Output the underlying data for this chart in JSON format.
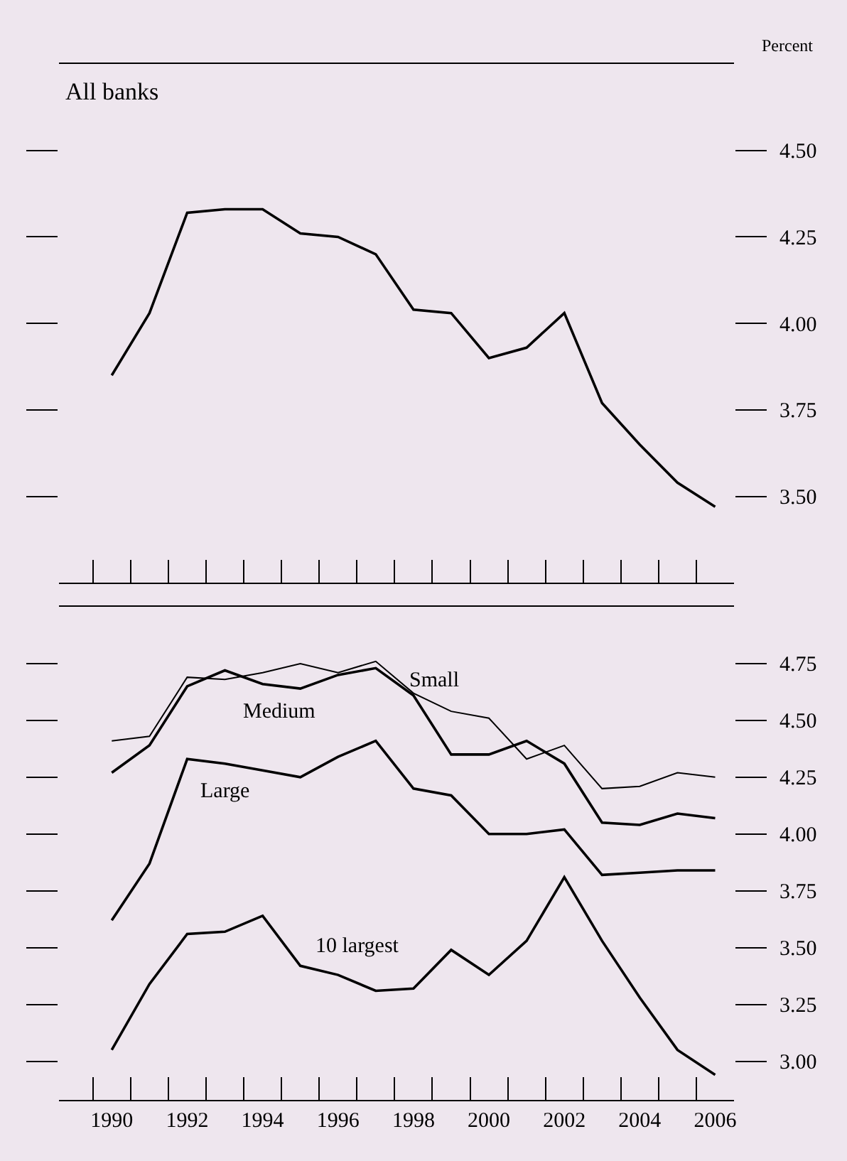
{
  "chart_data": [
    {
      "type": "line",
      "title": "All banks",
      "ylabel": "Percent",
      "x": [
        1990,
        1991,
        1992,
        1993,
        1994,
        1995,
        1996,
        1997,
        1998,
        1999,
        2000,
        2001,
        2002,
        2003,
        2004,
        2005,
        2006
      ],
      "series": [
        {
          "color": "#000000",
          "values": [
            3.85,
            4.03,
            4.32,
            4.33,
            4.33,
            4.26,
            4.25,
            4.2,
            4.04,
            4.03,
            3.9,
            3.93,
            4.03,
            3.77,
            3.65,
            3.54,
            3.47
          ]
        }
      ],
      "xlim": [
        1988.6,
        2006.5
      ],
      "xticks": [
        {
          "value": 1989.5,
          "label": null
        },
        {
          "value": 1990.5,
          "label": null
        },
        {
          "value": 1991.5,
          "label": null
        },
        {
          "value": 1992.5,
          "label": null
        },
        {
          "value": 1993.5,
          "label": null
        },
        {
          "value": 1994.5,
          "label": null
        },
        {
          "value": 1995.5,
          "label": null
        },
        {
          "value": 1996.5,
          "label": null
        },
        {
          "value": 1997.5,
          "label": null
        },
        {
          "value": 1998.5,
          "label": null
        },
        {
          "value": 1999.5,
          "label": null
        },
        {
          "value": 2000.5,
          "label": null
        },
        {
          "value": 2001.5,
          "label": null
        },
        {
          "value": 2002.5,
          "label": null
        },
        {
          "value": 2003.5,
          "label": null
        },
        {
          "value": 2004.5,
          "label": null
        },
        {
          "value": 2005.5,
          "label": null
        }
      ],
      "ylim": [
        3.25,
        4.75
      ],
      "yticks": [
        {
          "value": 3.5,
          "label": "3.50"
        },
        {
          "value": 3.75,
          "label": "3.75"
        },
        {
          "value": 4.0,
          "label": "4.00"
        },
        {
          "value": 4.25,
          "label": "4.25"
        },
        {
          "value": 4.5,
          "label": "4.50"
        }
      ],
      "tick_labels": "y",
      "grid": false,
      "marker": "none",
      "line_style": "solid"
    },
    {
      "type": "line",
      "x": [
        1990,
        1991,
        1992,
        1993,
        1994,
        1995,
        1996,
        1997,
        1998,
        1999,
        2000,
        2001,
        2002,
        2003,
        2004,
        2005,
        2006
      ],
      "series": [
        {
          "name": "Small",
          "color": "#000000",
          "values": [
            4.41,
            4.43,
            4.69,
            4.68,
            4.71,
            4.75,
            4.71,
            4.76,
            4.62,
            4.54,
            4.51,
            4.33,
            4.39,
            4.2,
            4.21,
            4.27,
            4.25
          ]
        },
        {
          "name": "Medium",
          "color": "#000000",
          "values": [
            4.27,
            4.39,
            4.65,
            4.72,
            4.66,
            4.64,
            4.7,
            4.73,
            4.61,
            4.35,
            4.35,
            4.41,
            4.31,
            4.05,
            4.04,
            4.09,
            4.07
          ]
        },
        {
          "name": "Large",
          "color": "#000000",
          "values": [
            3.62,
            3.87,
            4.33,
            4.31,
            4.28,
            4.25,
            4.34,
            4.41,
            4.2,
            4.17,
            4.0,
            4.0,
            4.02,
            3.82,
            3.83,
            3.84,
            3.84
          ]
        },
        {
          "name": "10 largest",
          "color": "#000000",
          "values": [
            3.05,
            3.34,
            3.56,
            3.57,
            3.64,
            3.42,
            3.38,
            3.31,
            3.32,
            3.49,
            3.38,
            3.53,
            3.81,
            3.53,
            3.28,
            3.05,
            2.94
          ]
        }
      ],
      "xlim": [
        1988.6,
        2006.5
      ],
      "xticks": [
        1990,
        1992,
        1994,
        1996,
        1998,
        2000,
        2002,
        2004,
        2006,
        {
          "value": 1989.5,
          "label": null
        },
        {
          "value": 1990.5,
          "label": null
        },
        {
          "value": 1991.5,
          "label": null
        },
        {
          "value": 1992.5,
          "label": null
        },
        {
          "value": 1993.5,
          "label": null
        },
        {
          "value": 1994.5,
          "label": null
        },
        {
          "value": 1995.5,
          "label": null
        },
        {
          "value": 1996.5,
          "label": null
        },
        {
          "value": 1997.5,
          "label": null
        },
        {
          "value": 1998.5,
          "label": null
        },
        {
          "value": 1999.5,
          "label": null
        },
        {
          "value": 2000.5,
          "label": null
        },
        {
          "value": 2001.5,
          "label": null
        },
        {
          "value": 2002.5,
          "label": null
        },
        {
          "value": 2003.5,
          "label": null
        },
        {
          "value": 2004.5,
          "label": null
        },
        {
          "value": 2005.5,
          "label": null
        }
      ],
      "ylim": [
        2.83,
        5.0
      ],
      "yticks": [
        {
          "value": 3.0,
          "label": "3.00"
        },
        {
          "value": 3.25,
          "label": "3.25"
        },
        {
          "value": 3.5,
          "label": "3.50"
        },
        {
          "value": 3.75,
          "label": "3.75"
        },
        {
          "value": 4.0,
          "label": "4.00"
        },
        {
          "value": 4.25,
          "label": "4.25"
        },
        {
          "value": 4.5,
          "label": "4.50"
        },
        {
          "value": 4.75,
          "label": "4.75"
        }
      ],
      "grid": false,
      "marker": "none",
      "line_style": "solid"
    }
  ]
}
